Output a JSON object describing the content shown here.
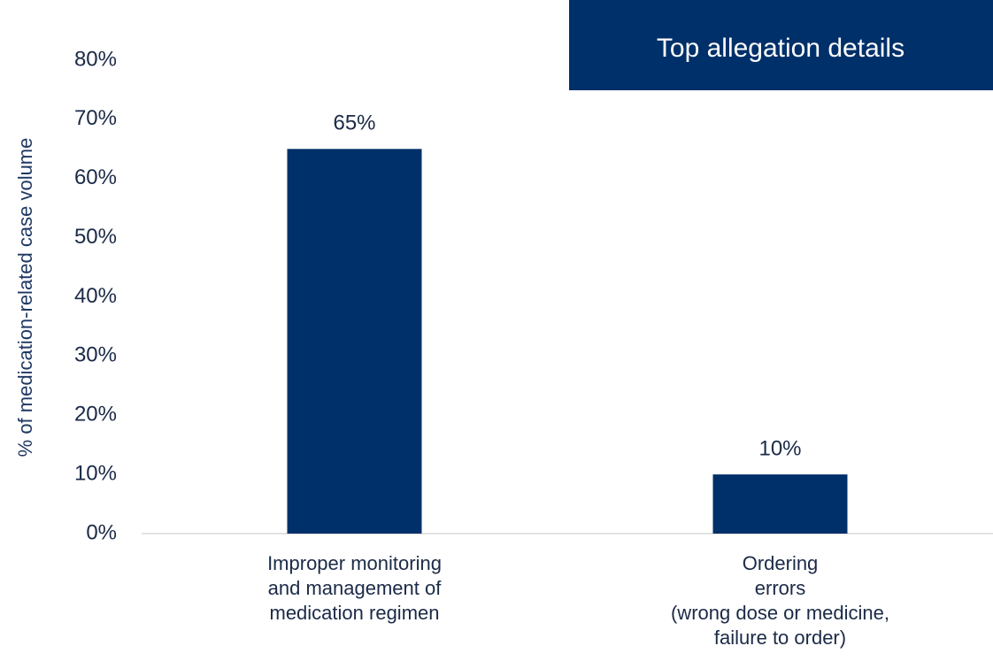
{
  "chart_data": {
    "type": "bar",
    "annotation": "Top allegation details",
    "y_label": "% of medication-related case volume",
    "categories": [
      "Improper monitoring\nand management of\nmedication regimen",
      "Ordering\nerrors\n(wrong dose or medicine,\nfailure to order)"
    ],
    "values": [
      65,
      10
    ],
    "value_labels": [
      "65%",
      "10%"
    ],
    "color": "#003069",
    "ylim": [
      0,
      80
    ],
    "yticks": [
      {
        "value": 0,
        "label": "0%"
      },
      {
        "value": 10,
        "label": "10%"
      },
      {
        "value": 20,
        "label": "20%"
      },
      {
        "value": 30,
        "label": "30%"
      },
      {
        "value": 40,
        "label": "40%"
      },
      {
        "value": 50,
        "label": "50%"
      },
      {
        "value": 60,
        "label": "60%"
      },
      {
        "value": 70,
        "label": "70%"
      },
      {
        "value": 80,
        "label": "80%"
      }
    ],
    "grid": false
  }
}
